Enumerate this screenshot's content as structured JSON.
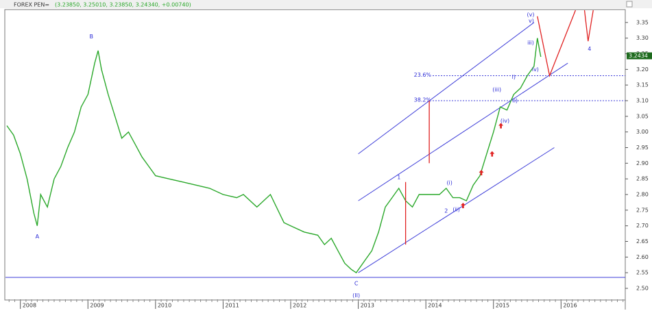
{
  "chart_data": {
    "type": "line",
    "title": "FOREX PEN=",
    "subtitle": "(3.23850, 3.25010, 3.23850, 3.24340, +0.00740)",
    "xlim": [
      2007.78,
      2016.95
    ],
    "ylim": [
      2.465,
      3.389
    ],
    "xticks": [
      2008,
      2009,
      2010,
      2011,
      2012,
      2013,
      2014,
      2015,
      2016
    ],
    "yticks": [
      {
        "value": 2.5,
        "label": "2.50"
      },
      {
        "value": 2.55,
        "label": "2.55"
      },
      {
        "value": 2.6,
        "label": "2.60"
      },
      {
        "value": 2.65,
        "label": "2.65"
      },
      {
        "value": 2.7,
        "label": "2.70"
      },
      {
        "value": 2.75,
        "label": "2.75"
      },
      {
        "value": 2.8,
        "label": "2.80"
      },
      {
        "value": 2.85,
        "label": "2.85"
      },
      {
        "value": 2.9,
        "label": "2.90"
      },
      {
        "value": 2.95,
        "label": "2.95"
      },
      {
        "value": 3.0,
        "label": "3.00"
      },
      {
        "value": 3.05,
        "label": "3.05"
      },
      {
        "value": 3.1,
        "label": "3.10"
      },
      {
        "value": 3.15,
        "label": "3.15"
      },
      {
        "value": 3.2,
        "label": "3.20"
      },
      {
        "value": 3.25,
        "label": "3.25"
      },
      {
        "value": 3.3,
        "label": "3.30"
      },
      {
        "value": 3.35,
        "label": "3.35"
      }
    ],
    "last_price": 3.2434,
    "series": [
      {
        "name": "PEN=",
        "color": "#2aa82a",
        "x": [
          2007.8,
          2007.9,
          2008.0,
          2008.1,
          2008.2,
          2008.25,
          2008.3,
          2008.4,
          2008.5,
          2008.6,
          2008.7,
          2008.8,
          2008.9,
          2009.0,
          2009.1,
          2009.15,
          2009.2,
          2009.3,
          2009.4,
          2009.5,
          2009.6,
          2009.7,
          2009.8,
          2009.9,
          2010.0,
          2010.2,
          2010.4,
          2010.6,
          2010.8,
          2011.0,
          2011.2,
          2011.3,
          2011.5,
          2011.7,
          2011.9,
          2012.0,
          2012.2,
          2012.4,
          2012.5,
          2012.6,
          2012.7,
          2012.8,
          2012.9,
          2012.97,
          2013.1,
          2013.2,
          2013.3,
          2013.4,
          2013.5,
          2013.6,
          2013.7,
          2013.8,
          2013.9,
          2014.0,
          2014.2,
          2014.3,
          2014.4,
          2014.5,
          2014.6,
          2014.7,
          2014.8,
          2014.9,
          2015.0,
          2015.1,
          2015.2,
          2015.3,
          2015.4,
          2015.5,
          2015.6,
          2015.65,
          2015.7
        ],
        "values": [
          3.02,
          2.99,
          2.93,
          2.85,
          2.74,
          2.7,
          2.8,
          2.76,
          2.85,
          2.89,
          2.95,
          3.0,
          3.08,
          3.12,
          3.22,
          3.26,
          3.2,
          3.12,
          3.05,
          2.98,
          3.0,
          2.96,
          2.92,
          2.89,
          2.86,
          2.85,
          2.84,
          2.83,
          2.82,
          2.8,
          2.79,
          2.8,
          2.76,
          2.8,
          2.71,
          2.7,
          2.68,
          2.67,
          2.64,
          2.66,
          2.62,
          2.58,
          2.56,
          2.55,
          2.59,
          2.62,
          2.68,
          2.76,
          2.79,
          2.82,
          2.78,
          2.76,
          2.8,
          2.8,
          2.8,
          2.82,
          2.79,
          2.79,
          2.78,
          2.83,
          2.86,
          2.93,
          3.0,
          3.08,
          3.07,
          3.12,
          3.14,
          3.18,
          3.21,
          3.3,
          3.24
        ]
      }
    ],
    "channels": [
      {
        "x": [
          2013.0,
          2015.6
        ],
        "y": [
          2.93,
          3.35
        ]
      },
      {
        "x": [
          2013.0,
          2016.1
        ],
        "y": [
          2.78,
          3.22
        ]
      },
      {
        "x": [
          2013.0,
          2015.9
        ],
        "y": [
          2.55,
          2.95
        ]
      },
      {
        "x": [
          2007.78,
          2016.95
        ],
        "y": [
          2.535,
          2.535
        ]
      }
    ],
    "fib_levels": [
      {
        "label": "23.6%",
        "value": 3.18,
        "start": 2014.1
      },
      {
        "label": "38.2%",
        "value": 3.1,
        "start": 2014.1
      }
    ],
    "projection": {
      "x": [
        2013.7,
        2013.7,
        null,
        2014.05,
        2014.05,
        null,
        2015.65,
        2015.83,
        2016.27,
        null,
        2016.33,
        2016.4,
        2016.5
      ],
      "y": [
        2.64,
        2.84,
        null,
        2.9,
        3.1,
        null,
        3.37,
        3.18,
        3.42,
        null,
        3.42,
        3.29,
        3.42
      ]
    },
    "arrows": [
      {
        "x": 2014.55,
        "y": 2.765
      },
      {
        "x": 2014.82,
        "y": 2.87
      },
      {
        "x": 2014.98,
        "y": 2.93
      },
      {
        "x": 2015.11,
        "y": 3.02
      }
    ],
    "annotations": [
      {
        "text": "A",
        "x": 2008.25,
        "y": 2.665
      },
      {
        "text": "B",
        "x": 2009.05,
        "y": 3.305
      },
      {
        "text": "C",
        "x": 2012.97,
        "y": 2.515
      },
      {
        "text": "(II)",
        "x": 2012.97,
        "y": 2.477
      },
      {
        "text": "1",
        "x": 2013.6,
        "y": 2.855
      },
      {
        "text": "2",
        "x": 2014.3,
        "y": 2.747
      },
      {
        "text": "(i)",
        "x": 2014.35,
        "y": 2.837
      },
      {
        "text": "(ii)",
        "x": 2014.45,
        "y": 2.752
      },
      {
        "text": "(iii)",
        "x": 2015.05,
        "y": 3.135
      },
      {
        "text": "(iv)",
        "x": 2015.17,
        "y": 3.035
      },
      {
        "text": "(v)",
        "x": 2015.55,
        "y": 3.375
      },
      {
        "text": "v)",
        "x": 2015.56,
        "y": 3.355
      },
      {
        "text": "iii)",
        "x": 2015.55,
        "y": 3.285
      },
      {
        "text": "iv)",
        "x": 2015.62,
        "y": 3.2
      },
      {
        "text": "i)",
        "x": 2015.3,
        "y": 3.175
      },
      {
        "text": "ii)",
        "x": 2015.32,
        "y": 3.1
      },
      {
        "text": "4",
        "x": 2016.42,
        "y": 3.265
      }
    ]
  }
}
